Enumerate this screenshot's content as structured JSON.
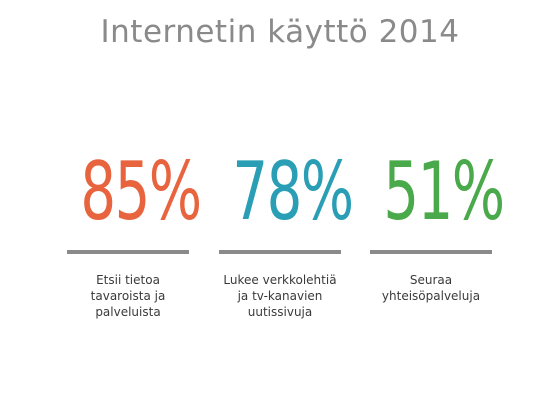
{
  "title": "Internetin käyttö 2014",
  "colors": {
    "title": "#8a8a8a",
    "caption": "#3a3a3a",
    "rule": "#8a8a8a"
  },
  "stats": [
    {
      "value": "85%",
      "color": "#e8643f",
      "caption": "Etsii tietoa\ntavaroista ja\npalveluista"
    },
    {
      "value": "78%",
      "color": "#2a9eb5",
      "caption": "Lukee verkkolehtiä\nja tv-kanavien\nuutissivuja"
    },
    {
      "value": "51%",
      "color": "#4aa94a",
      "caption": "Seuraa\nyhteisöpalveluja"
    }
  ]
}
